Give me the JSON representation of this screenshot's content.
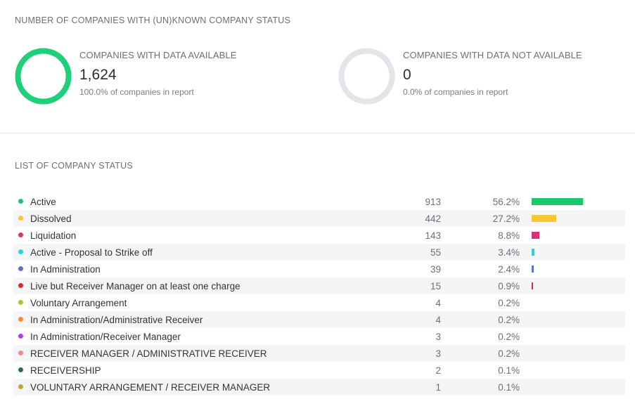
{
  "section_known": {
    "title": "NUMBER OF COMPANIES WITH (UN)KNOWN COMPANY STATUS"
  },
  "available": {
    "label": "COMPANIES WITH DATA AVAILABLE",
    "value": "1,624",
    "sub": "100.0% of companies in report",
    "fraction": 1.0,
    "ring_color": "#1fd07a"
  },
  "unavailable": {
    "label": "COMPANIES WITH DATA NOT AVAILABLE",
    "value": "0",
    "sub": "0.0% of companies in report",
    "fraction": 0.0,
    "ring_color": "#e4e5ea"
  },
  "section_list": {
    "title": "LIST OF COMPANY STATUS"
  },
  "statuses": [
    {
      "name": "Active",
      "count": "913",
      "pct": "56.2%",
      "share": 0.562,
      "color": "#1cc66b"
    },
    {
      "name": "Dissolved",
      "count": "442",
      "pct": "27.2%",
      "share": 0.272,
      "color": "#fcc532"
    },
    {
      "name": "Liquidation",
      "count": "143",
      "pct": "8.8%",
      "share": 0.088,
      "color": "#d6317a"
    },
    {
      "name": "Active - Proposal to Strike off",
      "count": "55",
      "pct": "3.4%",
      "share": 0.034,
      "color": "#2fd0df"
    },
    {
      "name": "In Administration",
      "count": "39",
      "pct": "2.4%",
      "share": 0.024,
      "color": "#5a74c4"
    },
    {
      "name": "Live but Receiver Manager on at least one charge",
      "count": "15",
      "pct": "0.9%",
      "share": 0.009,
      "color": "#d32f2f"
    },
    {
      "name": "Voluntary Arrangement",
      "count": "4",
      "pct": "0.2%",
      "share": 0.002,
      "color": "#9ccc2c"
    },
    {
      "name": "In Administration/Administrative Receiver",
      "count": "4",
      "pct": "0.2%",
      "share": 0.002,
      "color": "#f58a3c"
    },
    {
      "name": "In Administration/Receiver Manager",
      "count": "3",
      "pct": "0.2%",
      "share": 0.002,
      "color": "#b13fe0"
    },
    {
      "name": "RECEIVER MANAGER / ADMINISTRATIVE RECEIVER",
      "count": "3",
      "pct": "0.2%",
      "share": 0.002,
      "color": "#f08c8c"
    },
    {
      "name": "RECEIVERSHIP",
      "count": "2",
      "pct": "0.1%",
      "share": 0.001,
      "color": "#2e6b4f"
    },
    {
      "name": "VOLUNTARY ARRANGEMENT / RECEIVER MANAGER",
      "count": "1",
      "pct": "0.1%",
      "share": 0.001,
      "color": "#c2a431"
    }
  ]
}
